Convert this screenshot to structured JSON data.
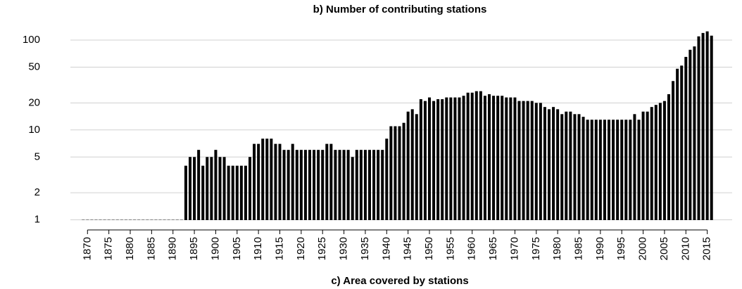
{
  "chart_data": {
    "type": "bar",
    "title": "b) Number of contributing stations",
    "annotations": [
      "c) Area covered by stations"
    ],
    "x": [
      1869,
      1870,
      1871,
      1872,
      1873,
      1874,
      1875,
      1876,
      1877,
      1878,
      1879,
      1880,
      1881,
      1882,
      1883,
      1884,
      1885,
      1886,
      1887,
      1888,
      1889,
      1890,
      1891,
      1892,
      1893,
      1894,
      1895,
      1896,
      1897,
      1898,
      1899,
      1900,
      1901,
      1902,
      1903,
      1904,
      1905,
      1906,
      1907,
      1908,
      1909,
      1910,
      1911,
      1912,
      1913,
      1914,
      1915,
      1916,
      1917,
      1918,
      1919,
      1920,
      1921,
      1922,
      1923,
      1924,
      1925,
      1926,
      1927,
      1928,
      1929,
      1930,
      1931,
      1932,
      1933,
      1934,
      1935,
      1936,
      1937,
      1938,
      1939,
      1940,
      1941,
      1942,
      1943,
      1944,
      1945,
      1946,
      1947,
      1948,
      1949,
      1950,
      1951,
      1952,
      1953,
      1954,
      1955,
      1956,
      1957,
      1958,
      1959,
      1960,
      1961,
      1962,
      1963,
      1964,
      1965,
      1966,
      1967,
      1968,
      1969,
      1970,
      1971,
      1972,
      1973,
      1974,
      1975,
      1976,
      1977,
      1978,
      1979,
      1980,
      1981,
      1982,
      1983,
      1984,
      1985,
      1986,
      1987,
      1988,
      1989,
      1990,
      1991,
      1992,
      1993,
      1994,
      1995,
      1996,
      1997,
      1998,
      1999,
      2000,
      2001,
      2002,
      2003,
      2004,
      2005,
      2006,
      2007,
      2008,
      2009,
      2010,
      2011,
      2012,
      2013,
      2014,
      2015,
      2016
    ],
    "values": [
      1,
      1,
      1,
      1,
      1,
      1,
      1,
      1,
      1,
      1,
      1,
      1,
      1,
      1,
      1,
      1,
      1,
      1,
      1,
      1,
      1,
      1,
      1,
      1,
      4,
      5,
      5,
      6,
      4,
      5,
      5,
      6,
      5,
      5,
      4,
      4,
      4,
      4,
      4,
      5,
      7,
      7,
      8,
      8,
      8,
      7,
      7,
      6,
      6,
      7,
      6,
      6,
      6,
      6,
      6,
      6,
      6,
      7,
      7,
      6,
      6,
      6,
      6,
      5,
      6,
      6,
      6,
      6,
      6,
      6,
      6,
      8,
      11,
      11,
      11,
      12,
      16,
      17,
      15,
      22,
      21,
      23,
      21,
      22,
      22,
      23,
      23,
      23,
      23,
      24,
      26,
      26,
      27,
      27,
      24,
      25,
      24,
      24,
      24,
      23,
      23,
      23,
      21,
      21,
      21,
      21,
      20,
      20,
      18,
      17,
      18,
      17,
      15,
      16,
      16,
      15,
      15,
      14,
      13,
      13,
      13,
      13,
      13,
      13,
      13,
      13,
      13,
      13,
      13,
      15,
      13,
      16,
      16,
      18,
      19,
      20,
      21,
      25,
      35,
      48,
      52,
      65,
      78,
      85,
      110,
      120,
      125,
      112
    ],
    "color": "#000000",
    "xlim": [
      1866,
      2020
    ],
    "xticks": [
      1870,
      1875,
      1880,
      1885,
      1890,
      1895,
      1900,
      1905,
      1910,
      1915,
      1920,
      1925,
      1930,
      1935,
      1940,
      1945,
      1950,
      1955,
      1960,
      1965,
      1970,
      1975,
      1980,
      1985,
      1990,
      1995,
      2000,
      2005,
      2010,
      2015
    ],
    "ylim": [
      0.8,
      178
    ],
    "yticks": [
      1,
      2,
      5,
      10,
      20,
      50,
      100
    ],
    "ylog": true,
    "grid": true
  }
}
